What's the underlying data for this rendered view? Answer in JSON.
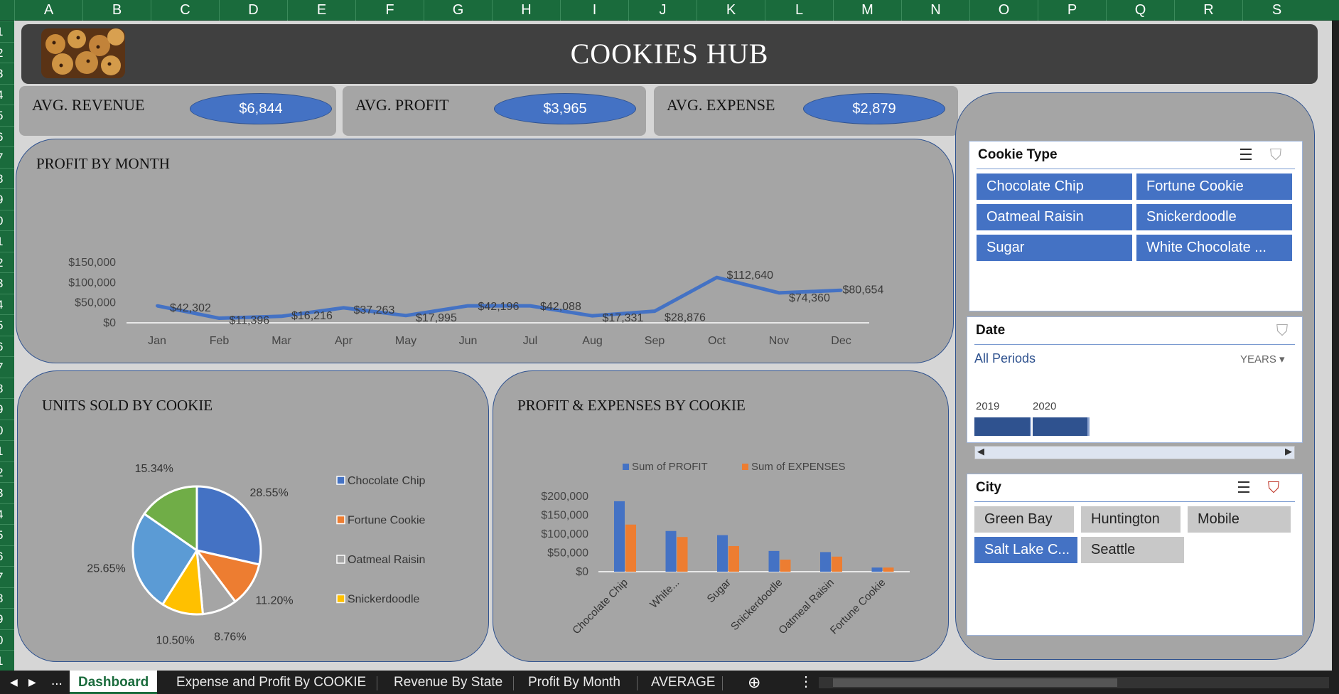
{
  "columns": [
    "A",
    "B",
    "C",
    "D",
    "E",
    "F",
    "G",
    "H",
    "I",
    "J",
    "K",
    "L",
    "M",
    "N",
    "O",
    "P",
    "Q",
    "R",
    "S"
  ],
  "rows": [
    "1",
    "2",
    "3",
    "4",
    "5",
    "6",
    "7",
    "8",
    "9",
    "0",
    "1",
    "2",
    "3",
    "4",
    "5",
    "6",
    "7",
    "8",
    "9",
    "0",
    "1",
    "2",
    "3",
    "4",
    "5",
    "6",
    "7",
    "8",
    "9",
    "0",
    "1"
  ],
  "banner": {
    "title": "COOKIES HUB"
  },
  "kpis": [
    {
      "label": "AVG. REVENUE",
      "value": "$6,844"
    },
    {
      "label": "AVG. PROFIT",
      "value": "$3,965"
    },
    {
      "label": "AVG. EXPENSE",
      "value": "$2,879"
    }
  ],
  "colors": {
    "accent": "#4472c4",
    "orange": "#ed7d31",
    "grey": "#a5a5a5",
    "yellow": "#ffc000",
    "green": "#70ad47",
    "lightblue": "#5b9bd5",
    "excel_green": "#1a6b3c"
  },
  "chart_data": [
    {
      "type": "line",
      "title": "PROFIT BY MONTH",
      "categories": [
        "Jan",
        "Feb",
        "Mar",
        "Apr",
        "May",
        "Jun",
        "Jul",
        "Aug",
        "Sep",
        "Oct",
        "Nov",
        "Dec"
      ],
      "series": [
        {
          "values": [
            42302,
            11396,
            16216,
            37263,
            17995,
            42196,
            42088,
            17331,
            28876,
            112640,
            74360,
            80654
          ]
        }
      ],
      "data_labels": [
        "$42,302",
        "$11,396",
        "$16,216",
        "$37,263",
        "$17,995",
        "$42,196",
        "$42,088",
        "$17,331",
        "$28,876",
        "$112,640",
        "$74,360",
        "$80,654"
      ],
      "y_ticks": [
        "$0",
        "$50,000",
        "$100,000",
        "$150,000"
      ],
      "ylim": [
        0,
        150000
      ]
    },
    {
      "type": "pie",
      "title": "UNITS SOLD BY COOKIE",
      "slices": [
        {
          "label": "Chocolate Chip",
          "value": 28.55,
          "text": "28.55%",
          "color": "#4472c4"
        },
        {
          "label": "Fortune Cookie",
          "value": 11.2,
          "text": "11.20%",
          "color": "#ed7d31"
        },
        {
          "label": "Oatmeal Raisin",
          "value": 8.76,
          "text": "8.76%",
          "color": "#a5a5a5"
        },
        {
          "label": "Snickerdoodle",
          "value": 10.5,
          "text": "10.50%",
          "color": "#ffc000"
        },
        {
          "label": "",
          "value": 25.65,
          "text": "25.65%",
          "color": "#5b9bd5"
        },
        {
          "label": "",
          "value": 15.34,
          "text": "15.34%",
          "color": "#70ad47"
        }
      ],
      "legend": [
        "Chocolate Chip",
        "Fortune Cookie",
        "Oatmeal Raisin",
        "Snickerdoodle"
      ]
    },
    {
      "type": "bar",
      "title": "PROFIT & EXPENSES BY COOKIE",
      "categories": [
        "Chocolate Chip",
        "White...",
        "Sugar",
        "Snickerdoodle",
        "Oatmeal Raisin",
        "Fortune Cookie"
      ],
      "series": [
        {
          "name": "Sum of PROFIT",
          "values": [
            187000,
            108000,
            97000,
            55000,
            52000,
            11000
          ],
          "color": "#4472c4"
        },
        {
          "name": "Sum of EXPENSES",
          "values": [
            125000,
            92000,
            68000,
            32000,
            40000,
            11000
          ],
          "color": "#ed7d31"
        }
      ],
      "y_ticks": [
        "$0",
        "$50,000",
        "$100,000",
        "$150,000",
        "$200,000"
      ],
      "ylim": [
        0,
        200000
      ]
    }
  ],
  "slicers": {
    "cookie_type": {
      "title": "Cookie Type",
      "items": [
        "Chocolate Chip",
        "Fortune Cookie",
        "Oatmeal Raisin",
        "Snickerdoodle",
        "Sugar",
        "White Chocolate ..."
      ]
    },
    "date": {
      "title": "Date",
      "period": "All Periods",
      "unit": "YEARS",
      "years": [
        "2019",
        "2020"
      ]
    },
    "city": {
      "title": "City",
      "items": [
        {
          "label": "Green Bay",
          "selected": false
        },
        {
          "label": "Huntington",
          "selected": false
        },
        {
          "label": "Mobile",
          "selected": false
        },
        {
          "label": "Salt Lake C...",
          "selected": true
        },
        {
          "label": "Seattle",
          "selected": false
        }
      ]
    }
  },
  "tabs": {
    "ellipsis": "...",
    "items": [
      "Dashboard",
      "Expense and Profit By COOKIE",
      "Revenue By State",
      "Profit By Month",
      "AVERAGE"
    ],
    "add": "⊕",
    "more": "⋮"
  }
}
